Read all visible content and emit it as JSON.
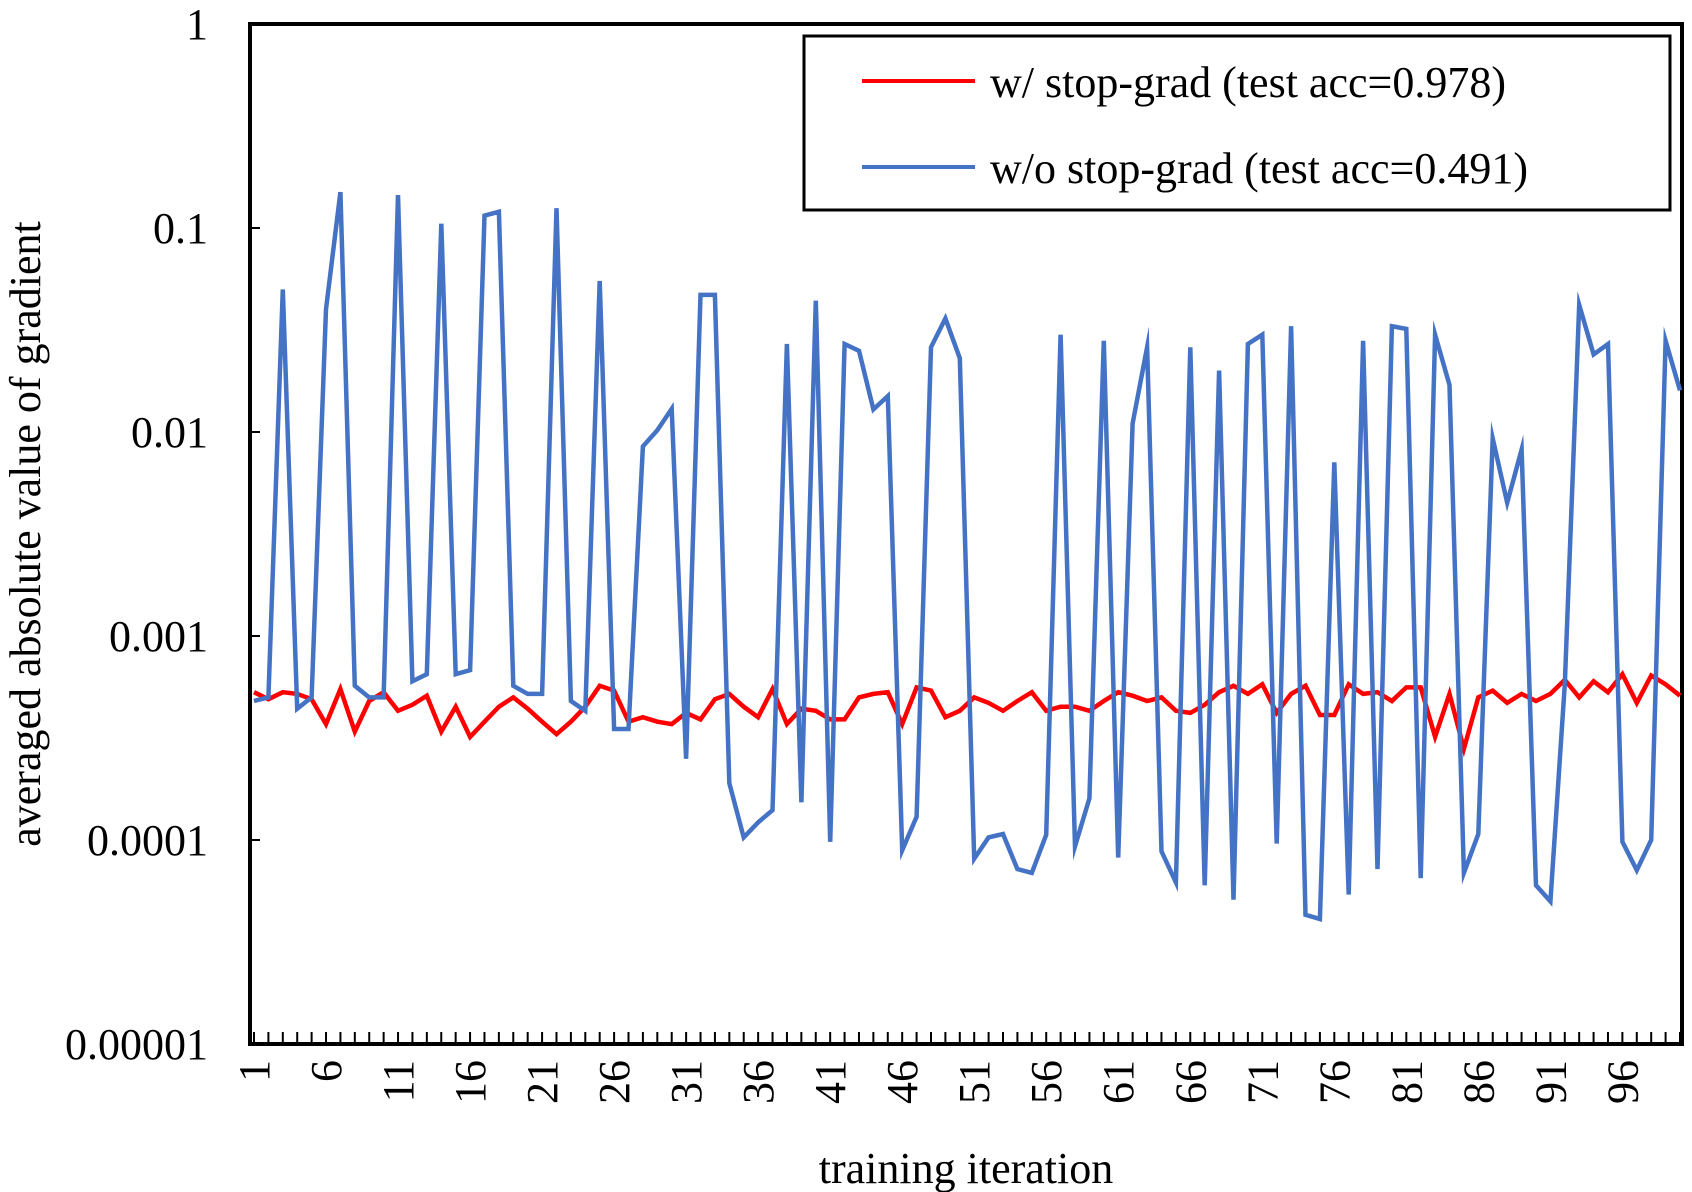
{
  "chart_data": {
    "type": "line",
    "title": "",
    "xlabel": "training iteration",
    "ylabel": "averaged absolute value of gradient",
    "y_scale": "log",
    "ylim": [
      1e-05,
      1
    ],
    "xlim": [
      1,
      100
    ],
    "y_tick_labels": [
      "1",
      "0.1",
      "0.01",
      "0.001",
      "0.0001",
      "0.00001"
    ],
    "x_tick_labels": [
      "1",
      "6",
      "11",
      "16",
      "21",
      "26",
      "31",
      "36",
      "41",
      "46",
      "51",
      "56",
      "61",
      "66",
      "71",
      "76",
      "81",
      "86",
      "91",
      "96"
    ],
    "grid": false,
    "legend_position": "top-right",
    "series": [
      {
        "name": "w/ stop-grad (test acc=0.978)",
        "color": "#ff0000",
        "x": [
          1,
          2,
          3,
          4,
          5,
          6,
          7,
          8,
          9,
          10,
          11,
          12,
          13,
          14,
          15,
          16,
          17,
          18,
          19,
          20,
          21,
          22,
          23,
          24,
          25,
          26,
          27,
          28,
          29,
          30,
          31,
          32,
          33,
          34,
          35,
          36,
          37,
          38,
          39,
          40,
          41,
          42,
          43,
          44,
          45,
          46,
          47,
          48,
          49,
          50,
          51,
          52,
          53,
          54,
          55,
          56,
          57,
          58,
          59,
          60,
          61,
          62,
          63,
          64,
          65,
          66,
          67,
          68,
          69,
          70,
          71,
          72,
          73,
          74,
          75,
          76,
          77,
          78,
          79,
          80,
          81,
          82,
          83,
          84,
          85,
          86,
          87,
          88,
          89,
          90,
          91,
          92,
          93,
          94,
          95,
          96,
          97,
          98,
          99,
          100
        ],
        "values": [
          0.00053,
          0.00049,
          0.00053,
          0.00052,
          0.00049,
          0.00037,
          0.00055,
          0.00034,
          0.00048,
          0.00053,
          0.00043,
          0.00046,
          0.00051,
          0.00034,
          0.00045,
          0.00032,
          0.00038,
          0.00045,
          0.0005,
          0.00044,
          0.00038,
          0.00033,
          0.00038,
          0.00045,
          0.00057,
          0.00054,
          0.00038,
          0.0004,
          0.00038,
          0.00037,
          0.00042,
          0.00039,
          0.00049,
          0.00052,
          0.00045,
          0.0004,
          0.00055,
          0.00037,
          0.00044,
          0.00043,
          0.00039,
          0.00039,
          0.0005,
          0.00052,
          0.00053,
          0.00037,
          0.00056,
          0.00054,
          0.0004,
          0.00043,
          0.0005,
          0.00047,
          0.00043,
          0.00048,
          0.00053,
          0.00043,
          0.00045,
          0.00045,
          0.00043,
          0.00048,
          0.00053,
          0.00051,
          0.00048,
          0.0005,
          0.00043,
          0.00042,
          0.00046,
          0.00053,
          0.00057,
          0.00052,
          0.00058,
          0.00042,
          0.00052,
          0.00057,
          0.00041,
          0.00041,
          0.00058,
          0.00052,
          0.00053,
          0.00048,
          0.00056,
          0.00056,
          0.00032,
          0.00052,
          0.00028,
          0.0005,
          0.00054,
          0.00047,
          0.00052,
          0.00048,
          0.00052,
          0.00061,
          0.0005,
          0.0006,
          0.00053,
          0.00065,
          0.00047,
          0.00064,
          0.00058,
          0.00051
        ]
      },
      {
        "name": "w/o stop-grad (test acc=0.491)",
        "color": "#4472c4",
        "x": [
          1,
          2,
          3,
          4,
          5,
          6,
          7,
          8,
          9,
          10,
          11,
          12,
          13,
          14,
          15,
          16,
          17,
          18,
          19,
          20,
          21,
          22,
          23,
          24,
          25,
          26,
          27,
          28,
          29,
          30,
          31,
          32,
          33,
          34,
          35,
          36,
          37,
          38,
          39,
          40,
          41,
          42,
          43,
          44,
          45,
          46,
          47,
          48,
          49,
          50,
          51,
          52,
          53,
          54,
          55,
          56,
          57,
          58,
          59,
          60,
          61,
          62,
          63,
          64,
          65,
          66,
          67,
          68,
          69,
          70,
          71,
          72,
          73,
          74,
          75,
          76,
          77,
          78,
          79,
          80,
          81,
          82,
          83,
          84,
          85,
          86,
          87,
          88,
          89,
          90,
          91,
          92,
          93,
          94,
          95,
          96,
          97,
          98,
          99,
          100
        ],
        "values": [
          0.00048,
          0.0005,
          0.05,
          0.00044,
          0.0005,
          0.04,
          0.15,
          0.00057,
          0.0005,
          0.0005,
          0.145,
          0.0006,
          0.00065,
          0.105,
          0.00065,
          0.00068,
          0.115,
          0.12,
          0.00057,
          0.00052,
          0.00052,
          0.125,
          0.00048,
          0.00043,
          0.055,
          0.00035,
          0.00035,
          0.0085,
          0.0102,
          0.013,
          0.00025,
          0.047,
          0.047,
          0.00019,
          0.000103,
          0.000122,
          0.00014,
          0.027,
          0.000153,
          0.044,
          9.8e-05,
          0.027,
          0.025,
          0.0129,
          0.015,
          8.9e-05,
          0.00013,
          0.026,
          0.036,
          0.023,
          8.1e-05,
          0.000103,
          0.000107,
          7.2e-05,
          6.9e-05,
          0.000106,
          0.03,
          9.3e-05,
          0.00016,
          0.028,
          8.2e-05,
          0.011,
          0.026,
          8.8e-05,
          6.2e-05,
          0.026,
          6e-05,
          0.02,
          5.1e-05,
          0.027,
          0.03,
          9.6e-05,
          0.033,
          4.3e-05,
          4.1e-05,
          0.0071,
          5.4e-05,
          0.028,
          7.2e-05,
          0.033,
          0.032,
          6.5e-05,
          0.03,
          0.017,
          6.9e-05,
          0.000107,
          0.0093,
          0.0045,
          0.0082,
          6e-05,
          5e-05,
          0.00058,
          0.042,
          0.024,
          0.027,
          9.8e-05,
          7.1e-05,
          0.0001,
          0.028,
          0.016
        ]
      }
    ]
  }
}
